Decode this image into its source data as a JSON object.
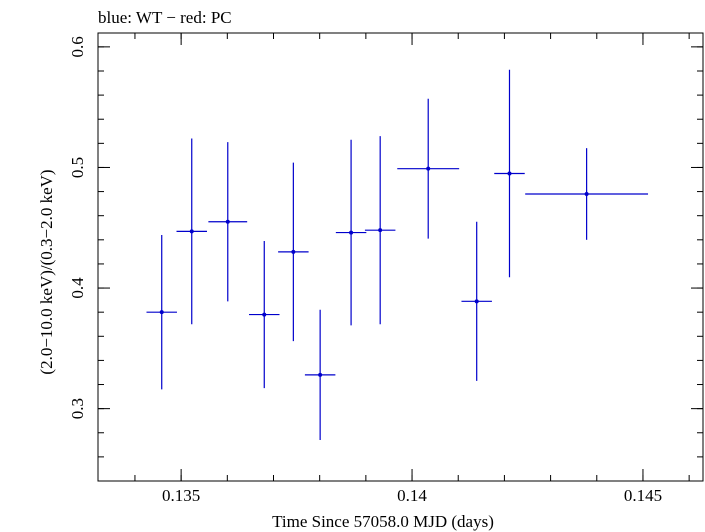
{
  "chart_data": {
    "type": "scatter",
    "title": "blue: WT − red: PC",
    "xlabel": "Time Since 57058.0 MJD (days)",
    "ylabel": "(2.0−10.0 keV)/(0.3−2.0 keV)",
    "xlim": [
      0.1332,
      0.1463
    ],
    "ylim": [
      0.24,
      0.6115
    ],
    "x_ticks": [
      {
        "value": 0.135,
        "label": "0.135"
      },
      {
        "value": 0.14,
        "label": "0.14"
      },
      {
        "value": 0.145,
        "label": "0.145"
      }
    ],
    "y_ticks": [
      {
        "value": 0.3,
        "label": "0.3"
      },
      {
        "value": 0.4,
        "label": "0.4"
      },
      {
        "value": 0.5,
        "label": "0.5"
      },
      {
        "value": 0.6,
        "label": "0.6"
      }
    ],
    "x_minor_step": 0.001,
    "y_minor_step": 0.02,
    "grid": false,
    "series": [
      {
        "color": "#0000cc",
        "points": [
          {
            "x": 0.13458,
            "xerr": 0.00033,
            "y": 0.38,
            "yerr_low": 0.064,
            "yerr_high": 0.064
          },
          {
            "x": 0.13523,
            "xerr": 0.00033,
            "y": 0.447,
            "yerr_low": 0.077,
            "yerr_high": 0.077
          },
          {
            "x": 0.13601,
            "xerr": 0.00042,
            "y": 0.455,
            "yerr_low": 0.066,
            "yerr_high": 0.066
          },
          {
            "x": 0.1368,
            "xerr": 0.00033,
            "y": 0.378,
            "yerr_low": 0.061,
            "yerr_high": 0.061
          },
          {
            "x": 0.13743,
            "xerr": 0.00033,
            "y": 0.43,
            "yerr_low": 0.074,
            "yerr_high": 0.074
          },
          {
            "x": 0.13801,
            "xerr": 0.00033,
            "y": 0.328,
            "yerr_low": 0.054,
            "yerr_high": 0.054
          },
          {
            "x": 0.13868,
            "xerr": 0.00033,
            "y": 0.446,
            "yerr_low": 0.077,
            "yerr_high": 0.077
          },
          {
            "x": 0.13931,
            "xerr": 0.00033,
            "y": 0.448,
            "yerr_low": 0.078,
            "yerr_high": 0.078
          },
          {
            "x": 0.14035,
            "xerr": 0.00067,
            "y": 0.499,
            "yerr_low": 0.058,
            "yerr_high": 0.058
          },
          {
            "x": 0.1414,
            "xerr": 0.00033,
            "y": 0.389,
            "yerr_low": 0.066,
            "yerr_high": 0.066
          },
          {
            "x": 0.14211,
            "xerr": 0.00033,
            "y": 0.495,
            "yerr_low": 0.086,
            "yerr_high": 0.086
          },
          {
            "x": 0.14378,
            "xerr": 0.00133,
            "y": 0.478,
            "yerr_low": 0.038,
            "yerr_high": 0.038
          }
        ]
      }
    ]
  }
}
